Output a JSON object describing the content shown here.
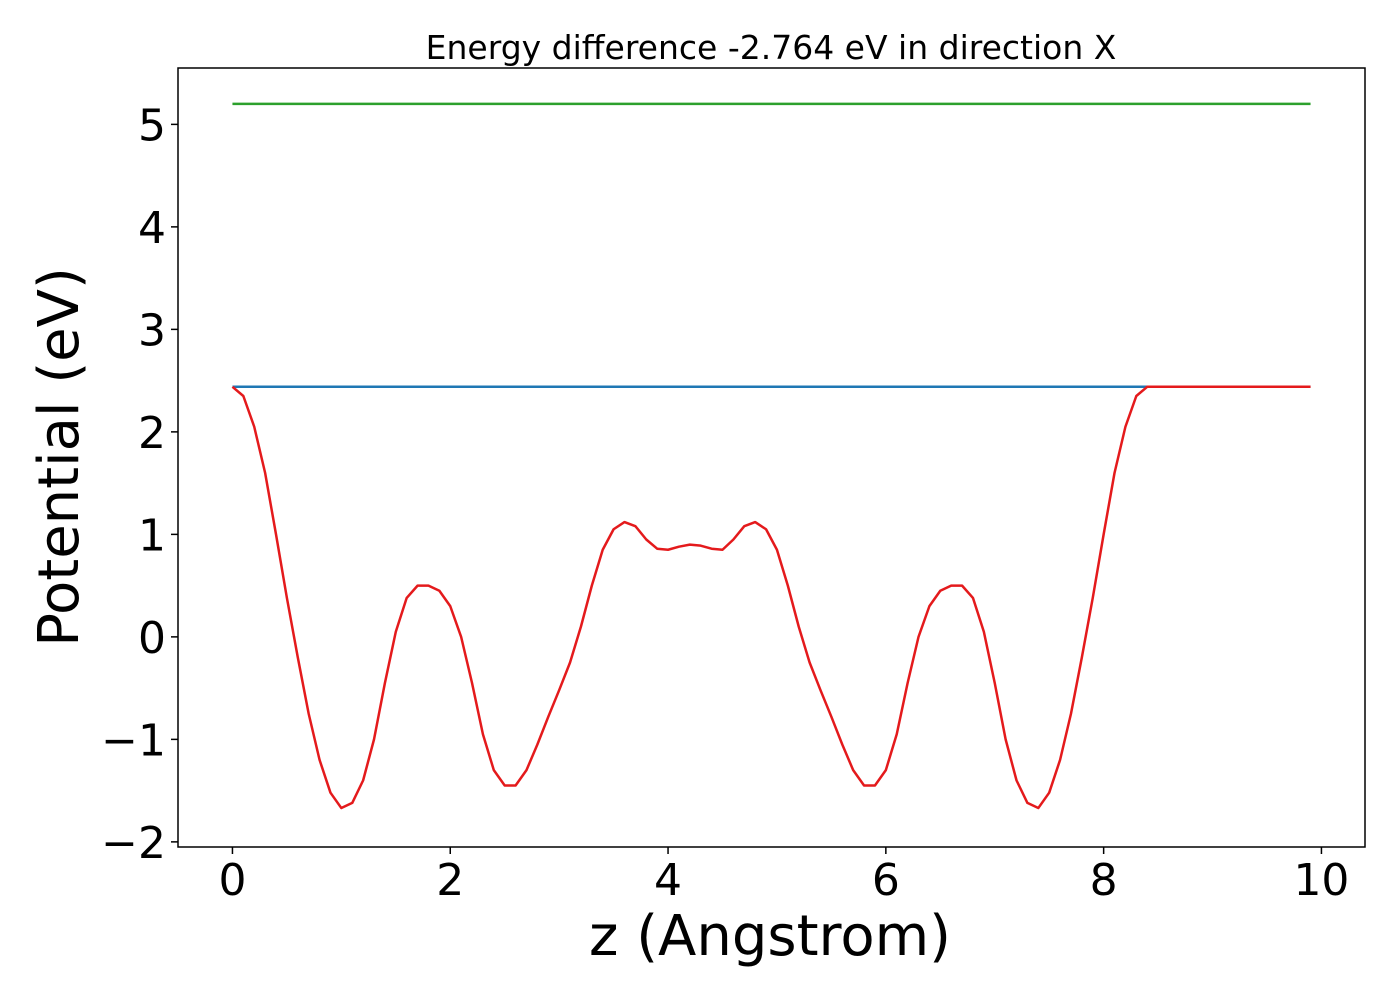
{
  "chart_data": {
    "type": "line",
    "title": "Energy difference -2.764 eV in direction X",
    "xlabel": "z (Angstrom)",
    "ylabel": "Potential (eV)",
    "xlim": [
      -0.5,
      10.4
    ],
    "ylim": [
      -2.05,
      5.55
    ],
    "xticks": [
      0,
      2,
      4,
      6,
      8,
      10
    ],
    "xtick_labels": [
      "0",
      "2",
      "4",
      "6",
      "8",
      "10"
    ],
    "yticks": [
      -2,
      -1,
      0,
      1,
      2,
      3,
      4,
      5
    ],
    "ytick_labels": [
      "−2",
      "−1",
      "0",
      "1",
      "2",
      "3",
      "4",
      "5"
    ],
    "grid": false,
    "series": [
      {
        "color": "#2ca02c",
        "x": [
          0.0,
          9.9
        ],
        "y": [
          5.2,
          5.2
        ]
      },
      {
        "color": "#1f77b4",
        "x": [
          0.0,
          9.9
        ],
        "y": [
          2.44,
          2.44
        ]
      },
      {
        "color": "#e41a1c",
        "x": [
          0.0,
          0.1,
          0.2,
          0.3,
          0.4,
          0.5,
          0.6,
          0.7,
          0.8,
          0.9,
          1.0,
          1.1,
          1.2,
          1.3,
          1.4,
          1.5,
          1.6,
          1.7,
          1.8,
          1.9,
          2.0,
          2.1,
          2.2,
          2.3,
          2.4,
          2.5,
          2.6,
          2.7,
          2.8,
          2.9,
          3.0,
          3.1,
          3.2,
          3.3,
          3.4,
          3.5,
          3.6,
          3.7,
          3.8,
          3.9,
          4.0,
          4.1,
          4.2,
          4.3,
          4.4,
          4.5,
          4.6,
          4.7,
          4.8,
          4.9,
          5.0,
          5.1,
          5.2,
          5.3,
          5.4,
          5.5,
          5.6,
          5.7,
          5.8,
          5.9,
          6.0,
          6.1,
          6.2,
          6.3,
          6.4,
          6.5,
          6.6,
          6.7,
          6.8,
          6.9,
          7.0,
          7.1,
          7.2,
          7.3,
          7.4,
          7.5,
          7.6,
          7.7,
          7.8,
          7.9,
          8.0,
          8.1,
          8.2,
          8.3,
          8.4,
          8.5,
          8.6,
          8.7,
          8.8,
          8.9,
          9.0,
          9.1,
          9.2,
          9.3,
          9.4,
          9.5,
          9.6,
          9.7,
          9.8,
          9.9
        ],
        "y": [
          2.44,
          2.35,
          2.05,
          1.6,
          1.0,
          0.38,
          -0.2,
          -0.75,
          -1.2,
          -1.52,
          -1.67,
          -1.62,
          -1.4,
          -1.0,
          -0.45,
          0.05,
          0.38,
          0.5,
          0.5,
          0.45,
          0.3,
          0.0,
          -0.45,
          -0.95,
          -1.3,
          -1.45,
          -1.45,
          -1.3,
          -1.05,
          -0.78,
          -0.52,
          -0.25,
          0.1,
          0.5,
          0.85,
          1.05,
          1.12,
          1.08,
          0.95,
          0.86,
          0.85,
          0.88,
          0.9,
          0.89,
          0.86,
          0.85,
          0.95,
          1.08,
          1.12,
          1.05,
          0.85,
          0.5,
          0.1,
          -0.25,
          -0.52,
          -0.78,
          -1.05,
          -1.3,
          -1.45,
          -1.45,
          -1.3,
          -0.95,
          -0.45,
          0.0,
          0.3,
          0.45,
          0.5,
          0.5,
          0.38,
          0.05,
          -0.45,
          -1.0,
          -1.4,
          -1.62,
          -1.67,
          -1.52,
          -1.2,
          -0.75,
          -0.2,
          0.38,
          1.0,
          1.6,
          2.05,
          2.35,
          2.44,
          2.44,
          2.44,
          2.44,
          2.44,
          2.44,
          2.44,
          2.44,
          2.44,
          2.44,
          2.44,
          2.44,
          2.44,
          2.44,
          2.44,
          2.44
        ]
      }
    ]
  }
}
